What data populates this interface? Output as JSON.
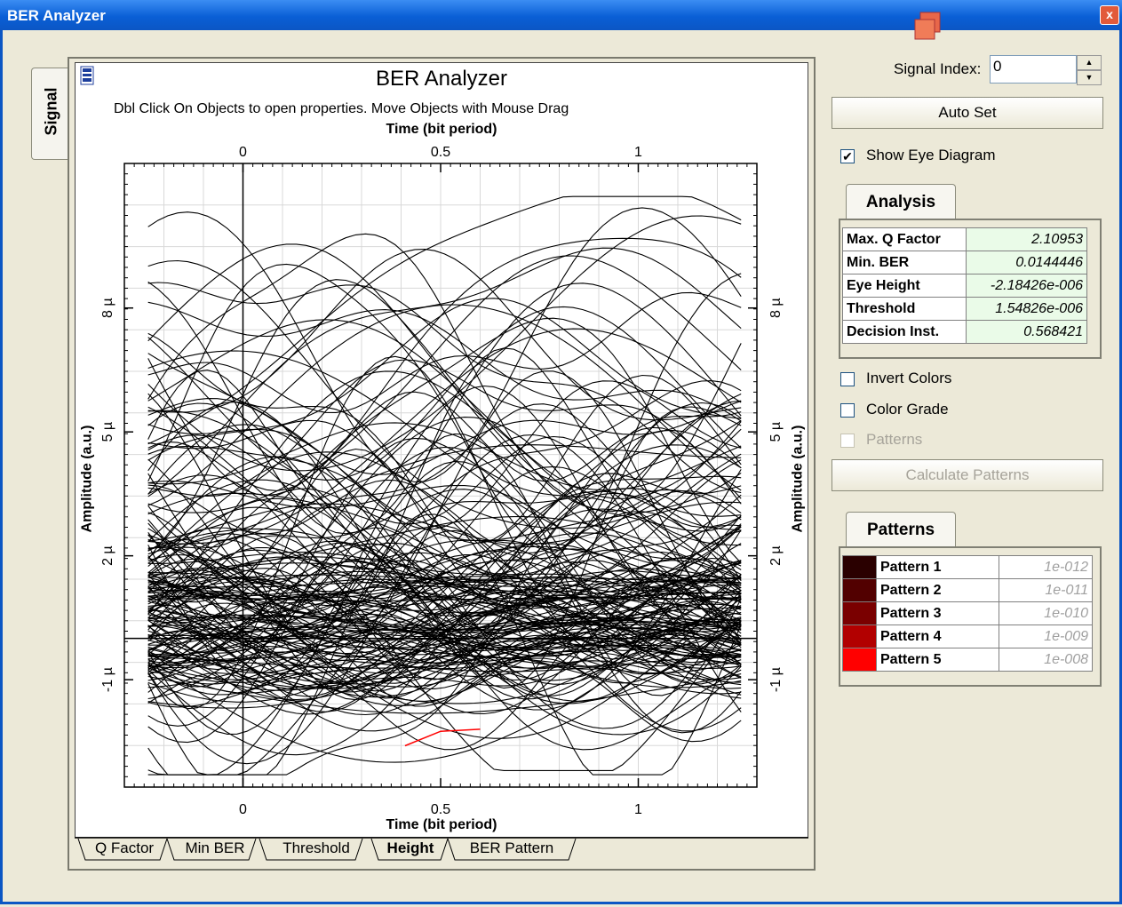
{
  "window": {
    "title": "BER Analyzer",
    "close_label": "x"
  },
  "side_tab": {
    "label": "Signal"
  },
  "plot": {
    "title": "BER Analyzer",
    "hint": "Dbl Click On Objects to open properties.  Move Objects with Mouse Drag",
    "xlabel": "Time (bit period)",
    "ylabel": "Amplitude (a.u.)",
    "x_ticks": [
      "0",
      "0.5",
      "1"
    ],
    "y_ticks": [
      "8 µ",
      "5 µ",
      "2 µ",
      "-1 µ"
    ]
  },
  "chart_data": {
    "type": "line",
    "title": "BER Analyzer",
    "xlabel": "Time (bit period)",
    "ylabel": "Amplitude (a.u.)",
    "xlim": [
      -0.3,
      1.3
    ],
    "ylim": [
      -3.6e-06,
      1.15e-05
    ],
    "x_ticks": [
      0,
      0.5,
      1
    ],
    "y_ticks": [
      8e-06,
      5e-06,
      2e-06,
      -1e-06
    ],
    "grid": true,
    "legend": "none",
    "series_color": "#000000",
    "decision_arc": {
      "color": "#ff0000",
      "x": [
        0.41,
        0.5,
        0.6
      ],
      "y": [
        -2.6e-06,
        -2.25e-06,
        -2.2e-06
      ]
    }
  },
  "bottom_tabs": [
    {
      "label": "Q Factor",
      "active": false
    },
    {
      "label": "Min BER",
      "active": false
    },
    {
      "label": "Threshold",
      "active": false
    },
    {
      "label": "Height",
      "active": true
    },
    {
      "label": "BER Pattern",
      "active": false
    }
  ],
  "controls": {
    "signal_index_label": "Signal Index:",
    "signal_index_value": "0",
    "auto_set_label": "Auto Set",
    "show_eye_label": "Show Eye Diagram",
    "show_eye_checked": true,
    "invert_colors_label": "Invert Colors",
    "color_grade_label": "Color Grade",
    "patterns_label": "Patterns",
    "calculate_patterns_label": "Calculate Patterns"
  },
  "analysis": {
    "tab_label": "Analysis",
    "rows": [
      {
        "key": "Max. Q Factor",
        "value": "2.10953"
      },
      {
        "key": "Min. BER",
        "value": "0.0144446"
      },
      {
        "key": "Eye Height",
        "value": "-2.18426e-006"
      },
      {
        "key": "Threshold",
        "value": "1.54826e-006"
      },
      {
        "key": "Decision Inst.",
        "value": "0.568421"
      }
    ]
  },
  "patterns": {
    "tab_label": "Patterns",
    "rows": [
      {
        "name": "Pattern 1",
        "value": "1e-012",
        "color": "#2a0000"
      },
      {
        "name": "Pattern 2",
        "value": "1e-011",
        "color": "#520000"
      },
      {
        "name": "Pattern 3",
        "value": "1e-010",
        "color": "#7a0000"
      },
      {
        "name": "Pattern 4",
        "value": "1e-009",
        "color": "#b20000"
      },
      {
        "name": "Pattern 5",
        "value": "1e-008",
        "color": "#ff0000"
      }
    ]
  }
}
